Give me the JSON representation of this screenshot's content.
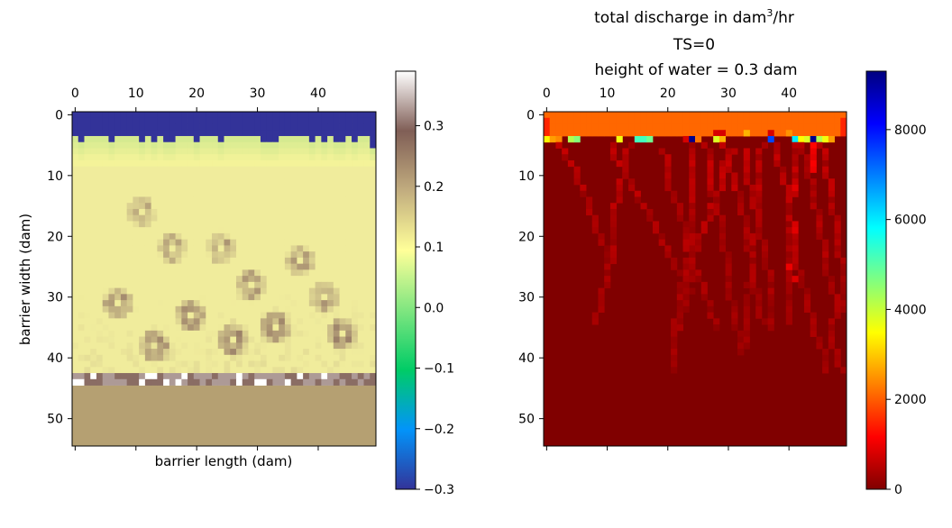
{
  "chart_data": [
    {
      "type": "heatmap",
      "title": "",
      "xlabel": "barrier length (dam)",
      "ylabel": "barrier width (dam)",
      "x_range": [
        0,
        50
      ],
      "y_range": [
        0,
        55
      ],
      "xticks": [
        "0",
        "10",
        "20",
        "30",
        "40"
      ],
      "yticks": [
        "0",
        "10",
        "20",
        "30",
        "40",
        "50"
      ],
      "colormap": "terrain",
      "colorbar": {
        "range": [
          -0.3,
          0.39
        ],
        "ticks": [
          "−0.3",
          "−0.2",
          "−0.1",
          "0.0",
          "0.1",
          "0.2",
          "0.3"
        ],
        "tick_values": [
          -0.3,
          -0.2,
          -0.1,
          0.0,
          0.1,
          0.2,
          0.3
        ],
        "stops": [
          "#333399",
          "#0294fa",
          "#00cc66",
          "#80e680",
          "#ffff99",
          "#c2ad7f",
          "#805e56",
          "#ffffff"
        ]
      },
      "regions": {
        "ocean_value": -0.3,
        "ocean_colour": "#333399",
        "beach_value": 0.03,
        "beach_colour": "#f4f399",
        "dune_value": 0.08,
        "dune_colour": "#f0ec9c",
        "bay_value": 0.17,
        "bay_colour": "#b5a072",
        "bay_edge_values": [
          0.3,
          0.25,
          0.2
        ],
        "bay_edge_colours": [
          "#ffffff",
          "#ad9a96",
          "#8a6d64"
        ]
      }
    },
    {
      "type": "heatmap",
      "title_main": "total discharge in dam",
      "title_sup": "3",
      "title_unit": "/hr",
      "subtitle_line1": "TS=0",
      "subtitle_line2": "height of water = 0.3 dam",
      "x_range": [
        0,
        50
      ],
      "y_range": [
        0,
        55
      ],
      "xticks": [
        "0",
        "10",
        "20",
        "30",
        "40"
      ],
      "yticks": [
        "0",
        "10",
        "20",
        "30",
        "40",
        "50"
      ],
      "colormap": "jet_r",
      "colorbar": {
        "range": [
          0,
          9300
        ],
        "ticks": [
          "0",
          "2000",
          "4000",
          "6000",
          "8000"
        ],
        "tick_values": [
          0,
          2000,
          4000,
          6000,
          8000
        ],
        "stops": [
          "#800000",
          "#ff0000",
          "#ff8000",
          "#ffff00",
          "#80ff80",
          "#00ffff",
          "#0080ff",
          "#0000ff",
          "#000080"
        ]
      },
      "regions": {
        "shoreline_discharge": 2100,
        "shoreline_colour": "#ff9900",
        "background_discharge": 100,
        "background_colour": "#800000",
        "channel_discharge": 600,
        "channel_colour": "#b00808",
        "hotspot_values": [
          9200,
          6500,
          3500,
          800
        ]
      }
    }
  ]
}
